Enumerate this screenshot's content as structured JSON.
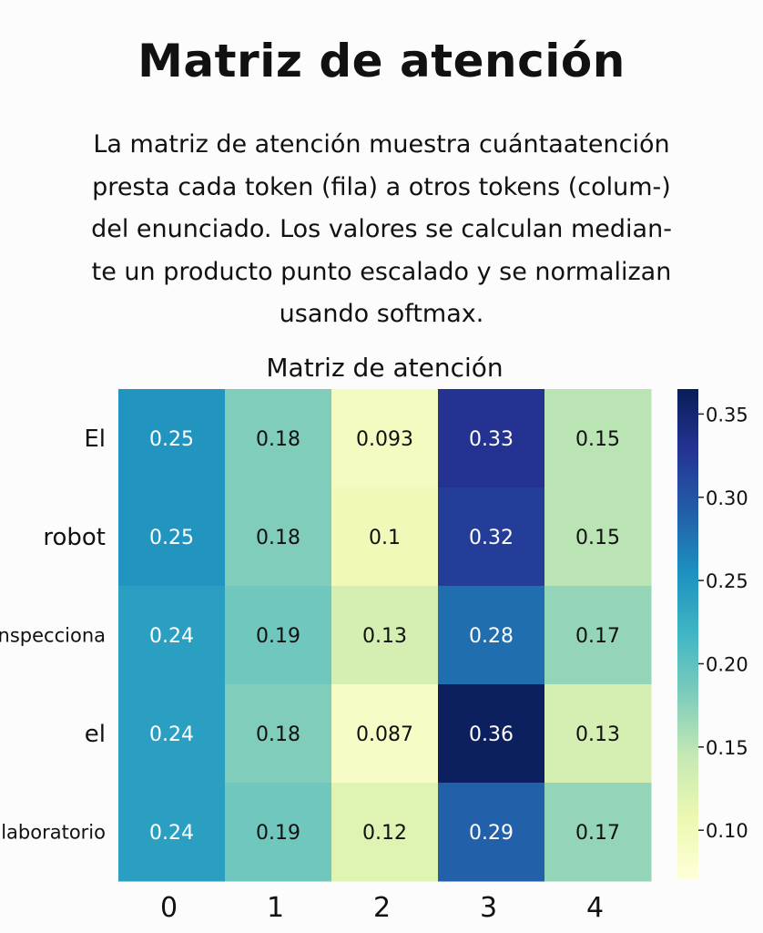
{
  "page": {
    "title": "Matriz de atención",
    "description_lines": [
      "La matriz de atención muestra cuántaatención",
      "presta cada token (fila) a otros tokens (colum-)",
      "del enunciado. Los valores se calculan median-",
      "te un producto punto escalado y se normalizan",
      "usando softmax."
    ]
  },
  "chart_data": {
    "type": "heatmap",
    "title": "Matriz de atención",
    "x_labels": [
      "0",
      "1",
      "2",
      "3",
      "4"
    ],
    "y_labels": [
      "El",
      "robot",
      "inspecciona",
      "el",
      "laboratorio"
    ],
    "values": [
      [
        0.25,
        0.18,
        0.093,
        0.33,
        0.15
      ],
      [
        0.25,
        0.18,
        0.1,
        0.32,
        0.15
      ],
      [
        0.24,
        0.19,
        0.13,
        0.28,
        0.17
      ],
      [
        0.24,
        0.18,
        0.087,
        0.36,
        0.13
      ],
      [
        0.24,
        0.19,
        0.12,
        0.29,
        0.17
      ]
    ],
    "cell_labels": [
      [
        "0.25",
        "0.18",
        "0.093",
        "0.33",
        "0.15"
      ],
      [
        "0.25",
        "0.18",
        "0.1",
        "0.32",
        "0.15"
      ],
      [
        "0.24",
        "0.19",
        "0.13",
        "0.28",
        "0.17"
      ],
      [
        "0.24",
        "0.18",
        "0.087",
        "0.36",
        "0.13"
      ],
      [
        "0.24",
        "0.19",
        "0.12",
        "0.29",
        "0.17"
      ]
    ],
    "colormap": "YlGnBu",
    "colormap_stops": [
      "#ffffd9",
      "#edf8b1",
      "#c7e9b4",
      "#7fcdbb",
      "#41b6c4",
      "#1d91c0",
      "#225ea8",
      "#253494",
      "#081d58"
    ],
    "vmin": 0.07,
    "vmax": 0.365,
    "colorbar_ticks": [
      "0.10",
      "0.15",
      "0.20",
      "0.25",
      "0.30",
      "0.35"
    ],
    "colorbar_tick_values": [
      0.1,
      0.15,
      0.2,
      0.25,
      0.3,
      0.35
    ]
  }
}
